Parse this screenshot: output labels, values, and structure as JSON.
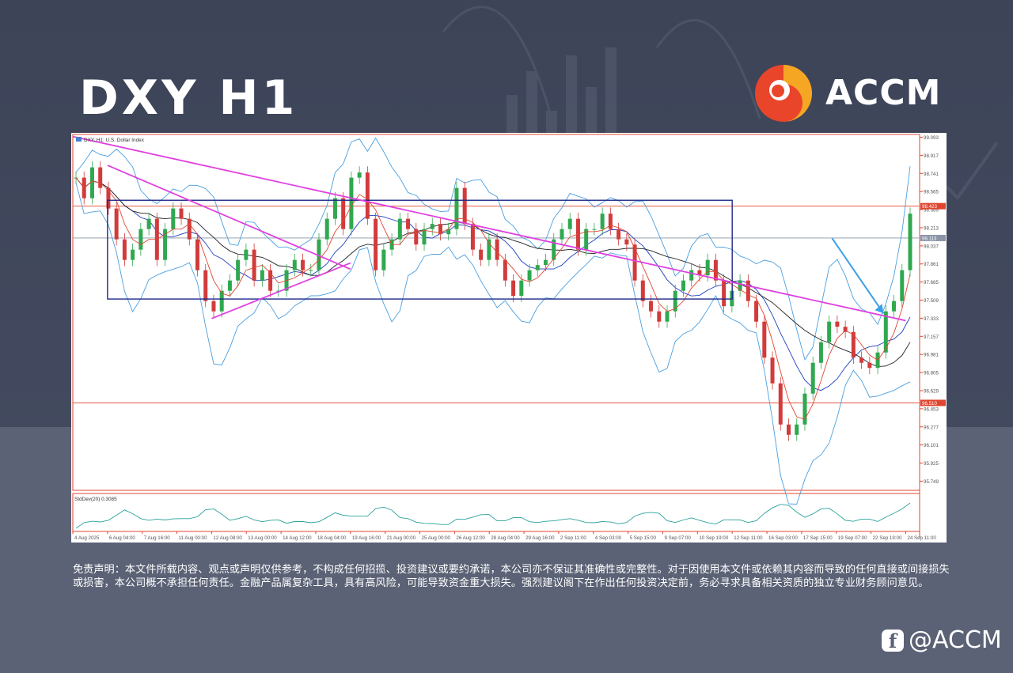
{
  "title": "DXY H1",
  "brand": {
    "name": "ACCM",
    "primary_color": "#e8452a",
    "secondary_color": "#f5a623"
  },
  "disclaimer": "免责声明：本文件所载内容、观点或声明仅供参考，不构成任何招揽、投资建议或要约承诺，本公司亦不保证其准确性或完整性。对于因使用本文件或依赖其内容而导致的任何直接或间接损失或损害，本公司概不承担任何责任。金融产品属复杂工具，具有高风险，可能导致资金重大损失。强烈建议阁下在作出任何投资决定前，务必寻求具备相关资质的独立专业财务顾问意见。",
  "watermark": "@ACCM",
  "chart_data": {
    "type": "line",
    "symbol_label": "DXY, H1: U.S. Dollar Index",
    "indicator_label": "StdDev(20) 0.3085",
    "ylim": [
      95.66,
      99.12
    ],
    "y_ticks": [
      "99.093",
      "98.917",
      "98.741",
      "98.565",
      "98.389",
      "98.213",
      "98.037",
      "97.861",
      "97.685",
      "97.509",
      "97.333",
      "97.157",
      "96.981",
      "96.805",
      "96.629",
      "96.453",
      "96.277",
      "96.101",
      "95.925",
      "95.749"
    ],
    "x_ticks": [
      "4 Aug 2025",
      "6 Aug 04:00",
      "7 Aug 16:00",
      "11 Aug 00:00",
      "12 Aug 08:00",
      "13 Aug 00:00",
      "14 Aug 12:00",
      "18 Aug 04:00",
      "19 Aug 16:00",
      "21 Aug 00:00",
      "25 Aug 00:00",
      "26 Aug 12:00",
      "28 Aug 04:00",
      "29 Aug 16:00",
      "2 Sep 11:00",
      "4 Sep 03:00",
      "5 Sep 15:00",
      "9 Sep 07:00",
      "10 Sep 19:00",
      "12 Sep 11:00",
      "16 Sep 03:00",
      "17 Sep 15:00",
      "19 Sep 07:00",
      "22 Sep 19:00",
      "24 Sep 11:00"
    ],
    "horizontal_levels": [
      {
        "value": 98.423,
        "label": "98.423",
        "color": "#e0452f"
      },
      {
        "value": 96.51,
        "label": "96.510",
        "color": "#e0452f"
      },
      {
        "value": 98.113,
        "label": "98.113",
        "color": "#8a96a8"
      }
    ],
    "price_series": {
      "name": "DXY",
      "values": [
        98.7,
        98.5,
        98.8,
        98.6,
        98.4,
        98.1,
        97.9,
        98.0,
        98.2,
        98.3,
        97.9,
        98.2,
        98.4,
        98.3,
        98.1,
        97.8,
        97.5,
        97.4,
        97.6,
        97.7,
        97.9,
        98.0,
        97.7,
        97.8,
        97.6,
        97.6,
        97.8,
        97.9,
        97.8,
        97.8,
        98.1,
        98.3,
        98.5,
        98.2,
        98.7,
        98.75,
        98.3,
        97.8,
        98.0,
        98.1,
        98.3,
        98.2,
        98.05,
        98.2,
        98.25,
        98.15,
        98.2,
        98.6,
        98.25,
        98.0,
        97.9,
        98.1,
        97.9,
        97.7,
        97.55,
        97.7,
        97.8,
        97.85,
        97.9,
        98.1,
        98.2,
        98.3,
        98.0,
        98.2,
        98.2,
        98.35,
        98.2,
        98.1,
        98.05,
        97.7,
        97.5,
        97.4,
        97.3,
        97.4,
        97.6,
        97.7,
        97.8,
        97.75,
        97.9,
        97.7,
        97.45,
        97.6,
        97.7,
        97.5,
        97.3,
        96.95,
        96.7,
        96.3,
        96.2,
        96.3,
        96.6,
        96.9,
        97.1,
        97.3,
        97.25,
        97.2,
        96.95,
        96.9,
        96.85,
        97.0,
        97.4,
        97.5,
        97.8,
        98.35
      ]
    },
    "trendlines": [
      {
        "name": "upper descending trendline",
        "color": "#e040e0",
        "from": [
          "4 Aug 2025",
          99.1
        ],
        "to": [
          "24 Sep 11:00",
          97.31
        ]
      },
      {
        "name": "short descending trendline",
        "color": "#e040e0",
        "from": [
          "6 Aug 04:00",
          98.82
        ],
        "to": [
          "19 Aug 16:00",
          97.81
        ]
      },
      {
        "name": "ascending trendline",
        "color": "#e040e0",
        "from": [
          "12 Aug 08:00",
          97.33
        ],
        "to": [
          "19 Aug 16:00",
          97.87
        ]
      }
    ],
    "range_box": {
      "color": "#1f2a8a",
      "top": 98.48,
      "bottom": 97.52,
      "from": "6 Aug 04:00",
      "to": "12 Sep 11:00"
    },
    "annotation_arrow_color": "#3aa0e8"
  }
}
